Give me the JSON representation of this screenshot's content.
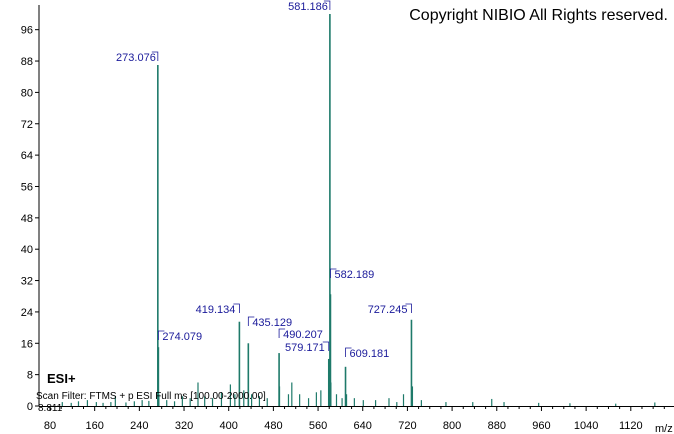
{
  "copyright": "Copyright NIBIO All Rights reserved.",
  "ion_mode": "ESI+",
  "scan_filter": "Scan Filter: FTMS + p ESI Full ms [100.00-2000.00]",
  "base_value": "8.811",
  "colors": {
    "peaks": "#1e7a6a",
    "labels": "#1a1a9a",
    "axis": "#000000"
  },
  "chart_data": {
    "type": "bar",
    "title": "",
    "xlabel": "m/z",
    "ylabel": "",
    "xlim": [
      80,
      1180
    ],
    "ylim": [
      0,
      100
    ],
    "xticks": [
      80,
      160,
      240,
      320,
      400,
      480,
      560,
      640,
      720,
      800,
      880,
      960,
      1040,
      1120
    ],
    "yticks": [
      0,
      8,
      16,
      24,
      32,
      40,
      48,
      56,
      64,
      72,
      80,
      88,
      96
    ],
    "grid": false,
    "labeled_peaks": [
      {
        "mz": 581.186,
        "intensity": 100,
        "label": "581.186"
      },
      {
        "mz": 273.076,
        "intensity": 87,
        "label": "273.076"
      },
      {
        "mz": 582.189,
        "intensity": 28.5,
        "label": "582.189"
      },
      {
        "mz": 727.245,
        "intensity": 22,
        "label": "727.245"
      },
      {
        "mz": 419.134,
        "intensity": 21.5,
        "label": "419.134"
      },
      {
        "mz": 435.129,
        "intensity": 16,
        "label": "435.129"
      },
      {
        "mz": 274.079,
        "intensity": 15,
        "label": "274.079"
      },
      {
        "mz": 490.207,
        "intensity": 13.5,
        "label": "490.207"
      },
      {
        "mz": 579.171,
        "intensity": 12,
        "label": "579.171"
      },
      {
        "mz": 609.181,
        "intensity": 10,
        "label": "609.181"
      }
    ],
    "minor_peaks": [
      {
        "mz": 102,
        "intensity": 1
      },
      {
        "mz": 118,
        "intensity": 0.8
      },
      {
        "mz": 131,
        "intensity": 1.2
      },
      {
        "mz": 147,
        "intensity": 1.5
      },
      {
        "mz": 163,
        "intensity": 1.0
      },
      {
        "mz": 175,
        "intensity": 0.8
      },
      {
        "mz": 189,
        "intensity": 1.0
      },
      {
        "mz": 197,
        "intensity": 2.5
      },
      {
        "mz": 216,
        "intensity": 0.9
      },
      {
        "mz": 231,
        "intensity": 1.2
      },
      {
        "mz": 245,
        "intensity": 1.5
      },
      {
        "mz": 257,
        "intensity": 1.3
      },
      {
        "mz": 275,
        "intensity": 3
      },
      {
        "mz": 289,
        "intensity": 1.5
      },
      {
        "mz": 303,
        "intensity": 1.2
      },
      {
        "mz": 317,
        "intensity": 2.5
      },
      {
        "mz": 331,
        "intensity": 2
      },
      {
        "mz": 345,
        "intensity": 6
      },
      {
        "mz": 357,
        "intensity": 2.5
      },
      {
        "mz": 371,
        "intensity": 2
      },
      {
        "mz": 387,
        "intensity": 3.5
      },
      {
        "mz": 403,
        "intensity": 5.5
      },
      {
        "mz": 411,
        "intensity": 3
      },
      {
        "mz": 427,
        "intensity": 4
      },
      {
        "mz": 441,
        "intensity": 3
      },
      {
        "mz": 455,
        "intensity": 2.5
      },
      {
        "mz": 469,
        "intensity": 2
      },
      {
        "mz": 491,
        "intensity": 5
      },
      {
        "mz": 507,
        "intensity": 3
      },
      {
        "mz": 513,
        "intensity": 6
      },
      {
        "mz": 527,
        "intensity": 3
      },
      {
        "mz": 543,
        "intensity": 2
      },
      {
        "mz": 557,
        "intensity": 3.5
      },
      {
        "mz": 565,
        "intensity": 4
      },
      {
        "mz": 583,
        "intensity": 6
      },
      {
        "mz": 593,
        "intensity": 3
      },
      {
        "mz": 603,
        "intensity": 2
      },
      {
        "mz": 611,
        "intensity": 3
      },
      {
        "mz": 625,
        "intensity": 2
      },
      {
        "mz": 641,
        "intensity": 1.5
      },
      {
        "mz": 663,
        "intensity": 1.5
      },
      {
        "mz": 687,
        "intensity": 2
      },
      {
        "mz": 701,
        "intensity": 1
      },
      {
        "mz": 713,
        "intensity": 3
      },
      {
        "mz": 729,
        "intensity": 5
      },
      {
        "mz": 745,
        "intensity": 1.5
      },
      {
        "mz": 789,
        "intensity": 1
      },
      {
        "mz": 837,
        "intensity": 1
      },
      {
        "mz": 871,
        "intensity": 1.8
      },
      {
        "mz": 893,
        "intensity": 1
      },
      {
        "mz": 955,
        "intensity": 0.8
      },
      {
        "mz": 1011,
        "intensity": 0.7
      },
      {
        "mz": 1093,
        "intensity": 0.6
      },
      {
        "mz": 1163,
        "intensity": 0.9
      }
    ]
  }
}
